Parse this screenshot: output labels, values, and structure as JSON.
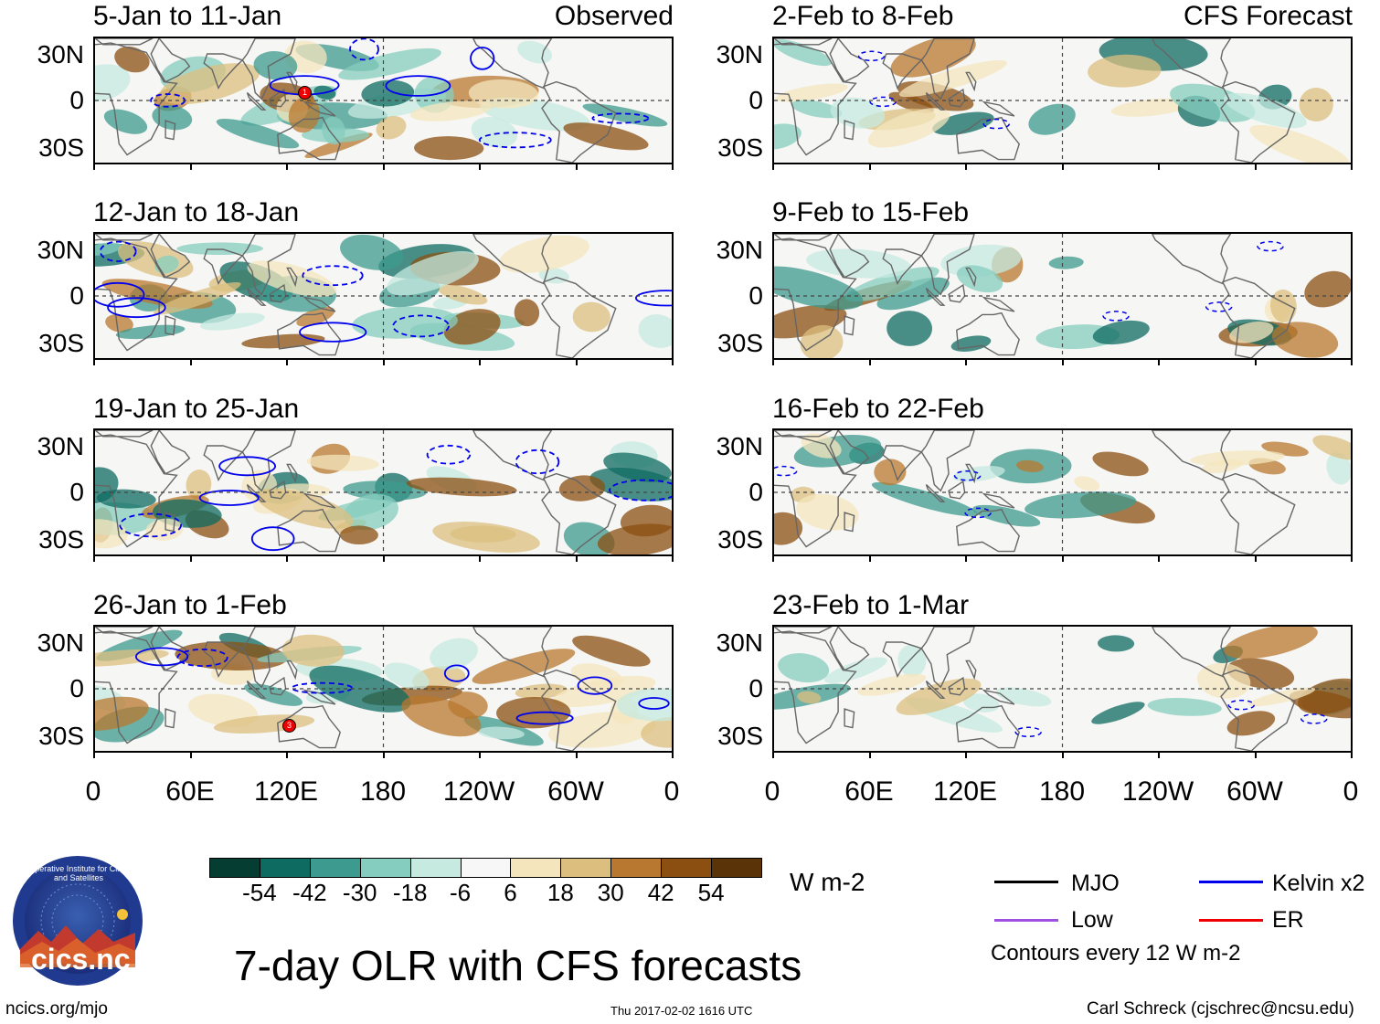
{
  "figure": {
    "title": "7-day OLR with CFS forecasts",
    "left_tag": "Observed",
    "right_tag": "CFS Forecast",
    "units": "W m-2",
    "contour_note": "Contours every 12 W m-2",
    "footer_left": "ncics.org/mjo",
    "footer_center": "Thu 2017-02-02 1616 UTC",
    "footer_right": "Carl Schreck (cjschrec@ncsu.edu)",
    "logo_text": "cics.nc",
    "logo_ring_text": "Cooperative Institute for Climate and Satellites"
  },
  "panels": {
    "left": [
      {
        "period": "5-Jan to 11-Jan"
      },
      {
        "period": "12-Jan to 18-Jan"
      },
      {
        "period": "19-Jan to 25-Jan"
      },
      {
        "period": "26-Jan to 1-Feb"
      }
    ],
    "right": [
      {
        "period": "2-Feb to 8-Feb"
      },
      {
        "period": "9-Feb to 15-Feb"
      },
      {
        "period": "16-Feb to 22-Feb"
      },
      {
        "period": "23-Feb to 1-Mar"
      }
    ]
  },
  "axes": {
    "lat_labels": [
      "30N",
      "0",
      "30S"
    ],
    "lon_labels": [
      "0",
      "60E",
      "120E",
      "180",
      "120W",
      "60W",
      "0"
    ]
  },
  "colorbar": {
    "colors": [
      "#053d33",
      "#0e6b62",
      "#3d9a8e",
      "#85cdbf",
      "#c6e9e0",
      "#f7f7f7",
      "#f4e5bd",
      "#dcbf7f",
      "#b8782f",
      "#8b4f11",
      "#5b3308"
    ],
    "labels": [
      "-54",
      "-42",
      "-30",
      "-18",
      "-6",
      "6",
      "18",
      "30",
      "42",
      "54"
    ]
  },
  "legend": [
    {
      "label": "MJO",
      "color": "#000000"
    },
    {
      "label": "Kelvin x2",
      "color": "#0000ee"
    },
    {
      "label": "Low",
      "color": "#a050e0"
    },
    {
      "label": "ER",
      "color": "#ee0000"
    }
  ],
  "storm_markers": [
    {
      "panel": "5-Jan to 11-Jan",
      "label": "1"
    },
    {
      "panel": "26-Jan to 1-Feb",
      "label": "3"
    }
  ]
}
